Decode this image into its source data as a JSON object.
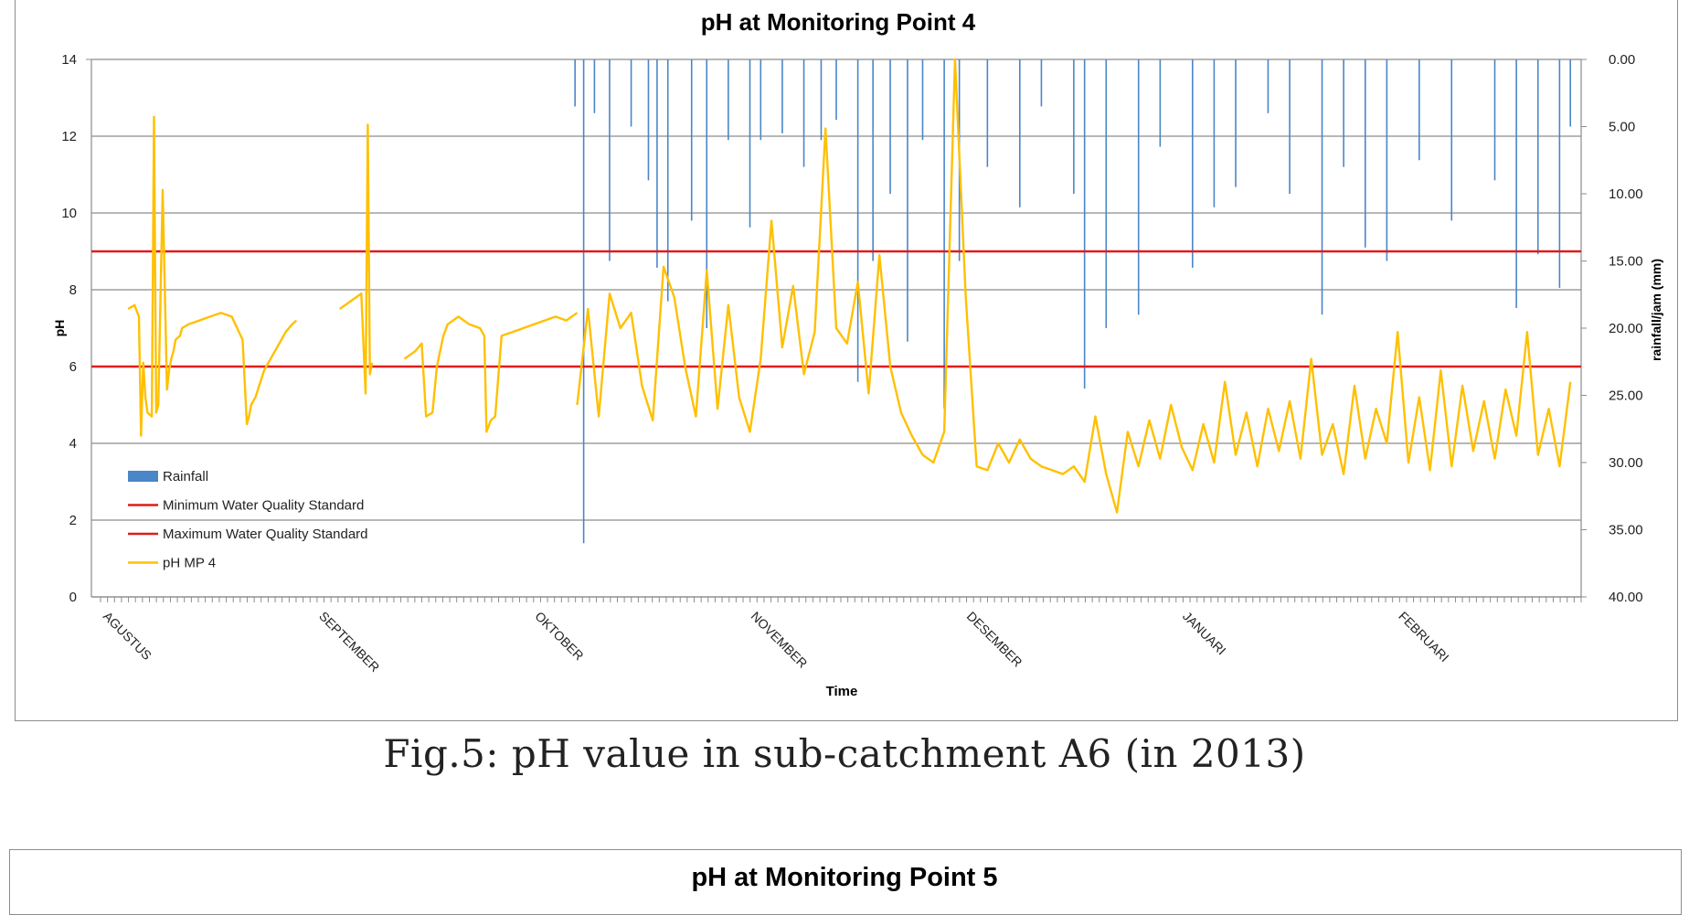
{
  "chart_data": {
    "type": "line",
    "title": "pH at Monitoring Point 4",
    "xlabel": "Time",
    "ylabel": "pH",
    "y2label": "rainfall/jam  (mm)",
    "ylim": [
      0,
      14
    ],
    "y2lim": [
      0,
      40
    ],
    "y2_inverted": true,
    "y_ticks": [
      "0",
      "2",
      "4",
      "6",
      "8",
      "10",
      "12",
      "14"
    ],
    "y2_ticks": [
      "0.00",
      "5.00",
      "10.00",
      "15.00",
      "20.00",
      "25.00",
      "30.00",
      "35.00",
      "40.00"
    ],
    "categories": [
      "AGUSTUS",
      "SEPTEMBER",
      "OKTOBER",
      "NOVEMBER",
      "DESEMBER",
      "JANUARI",
      "FEBRUARI"
    ],
    "grid": true,
    "legend_position": "bottom-left",
    "series": [
      {
        "name": "Minimum Water Quality Standard",
        "type": "line",
        "color": "#e01b1b",
        "x": [
          0,
          6.9
        ],
        "values": [
          6,
          6
        ]
      },
      {
        "name": "Maximum Water Quality Standard",
        "type": "line",
        "color": "#e01b1b",
        "x": [
          0,
          6.9
        ],
        "values": [
          9,
          9
        ]
      },
      {
        "name": "pH MP 4",
        "type": "line",
        "color": "#ffc000",
        "segments": [
          {
            "x": [
              0.17,
              0.2,
              0.22,
              0.23,
              0.24,
              0.25,
              0.26,
              0.28,
              0.29,
              0.3,
              0.31,
              0.33,
              0.35,
              0.36,
              0.37,
              0.38,
              0.39,
              0.41,
              0.42,
              0.45,
              0.5,
              0.55,
              0.6,
              0.65,
              0.7,
              0.72,
              0.73,
              0.74,
              0.76,
              0.8,
              0.85,
              0.9,
              0.93,
              0.95
            ],
            "values": [
              7.5,
              7.6,
              7.3,
              4.2,
              6.1,
              5.2,
              4.8,
              4.7,
              12.5,
              4.8,
              5.0,
              10.6,
              5.4,
              5.9,
              6.2,
              6.4,
              6.7,
              6.8,
              7.0,
              7.1,
              7.2,
              7.3,
              7.4,
              7.3,
              6.7,
              4.5,
              4.7,
              5.0,
              5.2,
              5.9,
              6.4,
              6.9,
              7.1,
              7.2
            ]
          },
          {
            "x": [
              1.15,
              1.2,
              1.25,
              1.27,
              1.28,
              1.29,
              1.3
            ],
            "values": [
              7.5,
              7.7,
              7.9,
              5.3,
              12.3,
              5.8,
              6.1
            ]
          },
          {
            "x": [
              1.45,
              1.5,
              1.53,
              1.55,
              1.58,
              1.6,
              1.63,
              1.65,
              1.7,
              1.75,
              1.8,
              1.82,
              1.83,
              1.85,
              1.87,
              1.9,
              1.95,
              2.0,
              2.05,
              2.1,
              2.15,
              2.2,
              2.25
            ],
            "values": [
              6.2,
              6.4,
              6.6,
              4.7,
              4.8,
              6.0,
              6.8,
              7.1,
              7.3,
              7.1,
              7.0,
              6.8,
              4.3,
              4.6,
              4.7,
              6.8,
              6.9,
              7.0,
              7.1,
              7.2,
              7.3,
              7.2,
              7.4
            ]
          },
          {
            "x": [
              2.25,
              2.3,
              2.35,
              2.4,
              2.45,
              2.5,
              2.55,
              2.6,
              2.65,
              2.7,
              2.75,
              2.8,
              2.85,
              2.9,
              2.95,
              3.0,
              3.05,
              3.1,
              3.15,
              3.2,
              3.25,
              3.3,
              3.35,
              3.4,
              3.45,
              3.5,
              3.55,
              3.6,
              3.65,
              3.7,
              3.75,
              3.8,
              3.85
            ],
            "values": [
              5.0,
              7.5,
              4.7,
              7.9,
              7.0,
              7.4,
              5.5,
              4.6,
              8.6,
              7.8,
              6.0,
              4.7,
              8.5,
              4.9,
              7.6,
              5.2,
              4.3,
              6.2,
              9.8,
              6.5,
              8.1,
              5.8,
              6.9,
              12.2,
              7.0,
              6.6,
              8.2,
              5.3,
              8.9,
              6.0,
              4.8,
              4.2,
              3.7
            ]
          },
          {
            "x": [
              3.85,
              3.9,
              3.95,
              4.0,
              4.05,
              4.1,
              4.15,
              4.2,
              4.25,
              4.3,
              4.35,
              4.4,
              4.45,
              4.5,
              4.55,
              4.6,
              4.65,
              4.7,
              4.75,
              4.8,
              4.85,
              4.9,
              4.95,
              5.0,
              5.05,
              5.1,
              5.15,
              5.2,
              5.25,
              5.3,
              5.35,
              5.4,
              5.45,
              5.5,
              5.55,
              5.6,
              5.65,
              5.7,
              5.75,
              5.8,
              5.85,
              5.9,
              5.95,
              6.0,
              6.05,
              6.1,
              6.15,
              6.2,
              6.25,
              6.3,
              6.35,
              6.4,
              6.45,
              6.5,
              6.55,
              6.6,
              6.65,
              6.7,
              6.75,
              6.8,
              6.85
            ],
            "values": [
              3.7,
              3.5,
              4.3,
              14.0,
              7.8,
              3.4,
              3.3,
              4.0,
              3.5,
              4.1,
              3.6,
              3.4,
              3.3,
              3.2,
              3.4,
              3.0,
              4.7,
              3.2,
              2.2,
              4.3,
              3.4,
              4.6,
              3.6,
              5.0,
              3.9,
              3.3,
              4.5,
              3.5,
              5.6,
              3.7,
              4.8,
              3.4,
              4.9,
              3.8,
              5.1,
              3.6,
              6.2,
              3.7,
              4.5,
              3.2,
              5.5,
              3.6,
              4.9,
              4.0,
              6.9,
              3.5,
              5.2,
              3.3,
              5.9,
              3.4,
              5.5,
              3.8,
              5.1,
              3.6,
              5.4,
              4.2,
              6.9,
              3.7,
              4.9,
              3.4,
              5.6
            ]
          }
        ]
      },
      {
        "name": "Rainfall",
        "type": "bar",
        "axis": "y2",
        "color": "#4a86c8",
        "x": [
          2.24,
          2.28,
          2.33,
          2.4,
          2.5,
          2.58,
          2.62,
          2.67,
          2.78,
          2.85,
          2.95,
          3.05,
          3.1,
          3.2,
          3.3,
          3.38,
          3.45,
          3.55,
          3.62,
          3.7,
          3.78,
          3.85,
          3.95,
          4.02,
          4.15,
          4.3,
          4.4,
          4.55,
          4.6,
          4.7,
          4.85,
          4.95,
          5.1,
          5.2,
          5.3,
          5.45,
          5.55,
          5.7,
          5.8,
          5.9,
          6.0,
          6.15,
          6.3,
          6.5,
          6.6,
          6.7,
          6.8,
          6.85
        ],
        "values": [
          3.5,
          36.0,
          4.0,
          15.0,
          5.0,
          9.0,
          15.5,
          18.0,
          12.0,
          20.0,
          6.0,
          12.5,
          6.0,
          5.5,
          8.0,
          6.0,
          4.5,
          24.0,
          15.0,
          10.0,
          21.0,
          6.0,
          26.0,
          15.0,
          8.0,
          11.0,
          3.5,
          10.0,
          24.5,
          20.0,
          19.0,
          6.5,
          15.5,
          11.0,
          9.5,
          4.0,
          10.0,
          19.0,
          8.0,
          14.0,
          15.0,
          7.5,
          12.0,
          9.0,
          18.5,
          14.5,
          17.0,
          5.0
        ]
      }
    ]
  },
  "caption": "Fig.5: pH value in sub-catchment A6 (in 2013)",
  "next_chart": {
    "title": "pH at Monitoring Point 5"
  }
}
